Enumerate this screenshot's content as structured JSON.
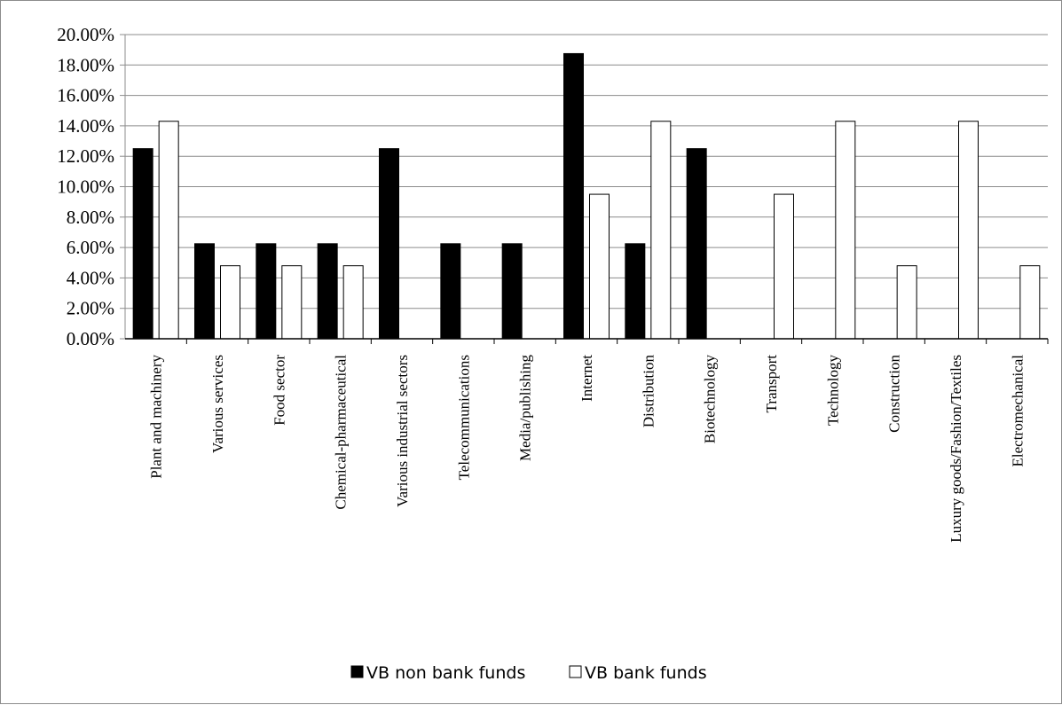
{
  "chart_data": {
    "type": "bar",
    "title": "",
    "xlabel": "",
    "ylabel": "",
    "ylim": [
      0,
      0.2
    ],
    "y_tick_labels": [
      "0.00%",
      "2.00%",
      "4.00%",
      "6.00%",
      "8.00%",
      "10.00%",
      "12.00%",
      "14.00%",
      "16.00%",
      "18.00%",
      "20.00%"
    ],
    "grid": "horizontal",
    "legend_position": "bottom",
    "categories": [
      "Plant and machinery",
      "Various services",
      "Food sector",
      "Chemical-pharmaceutical",
      "Various industrial sectors",
      "Telecommunications",
      "Media/publishing",
      "Internet",
      "Distribution",
      "Biotechnology",
      "Transport",
      "Technology",
      "Construction",
      "Luxury goods/Fashion/Textiles",
      "Electromechanical"
    ],
    "series": [
      {
        "name": "VB non bank funds",
        "color": "#000000",
        "values": [
          0.125,
          0.0625,
          0.0625,
          0.0625,
          0.125,
          0.0625,
          0.0625,
          0.1875,
          0.0625,
          0.125,
          0,
          0,
          0,
          0,
          0
        ]
      },
      {
        "name": "VB bank funds",
        "color": "#ffffff",
        "values": [
          0.143,
          0.048,
          0.048,
          0.048,
          0,
          0,
          0,
          0.095,
          0.143,
          0,
          0.095,
          0.143,
          0.048,
          0.143,
          0.048
        ]
      }
    ]
  }
}
